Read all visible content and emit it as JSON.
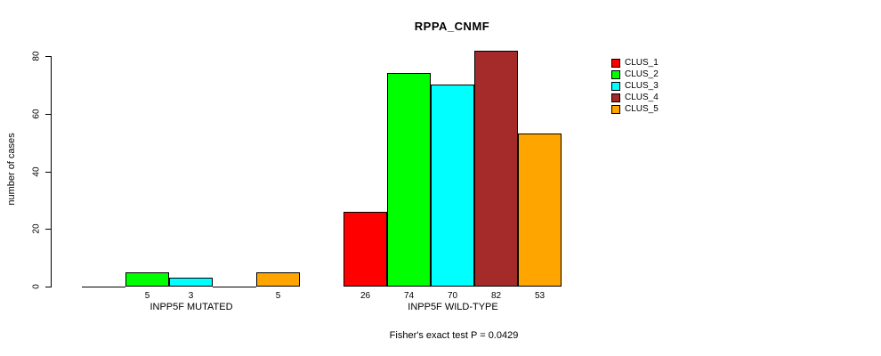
{
  "chart_data": {
    "type": "bar",
    "title": "RPPA_CNMF",
    "ylabel": "number of cases",
    "xlabel": "",
    "yticks": [
      0,
      20,
      40,
      60,
      80
    ],
    "ylim": [
      0,
      82
    ],
    "grid": false,
    "legend_position": "right-outside",
    "series": [
      {
        "name": "CLUS_1",
        "color": "#FF0000"
      },
      {
        "name": "CLUS_2",
        "color": "#00FF00"
      },
      {
        "name": "CLUS_3",
        "color": "#00FFFF"
      },
      {
        "name": "CLUS_4",
        "color": "#A52A2A"
      },
      {
        "name": "CLUS_5",
        "color": "#FFA500"
      }
    ],
    "groups": [
      {
        "label": "INPP5F MUTATED",
        "values": [
          0,
          5,
          3,
          0,
          5
        ],
        "shown_value_labels": [
          "5",
          "3",
          "5"
        ]
      },
      {
        "label": "INPP5F WILD-TYPE",
        "values": [
          26,
          74,
          70,
          82,
          53
        ],
        "shown_value_labels": [
          "26",
          "74",
          "70",
          "82",
          "53"
        ]
      }
    ],
    "footer": "Fisher's exact test P = 0.0429"
  }
}
